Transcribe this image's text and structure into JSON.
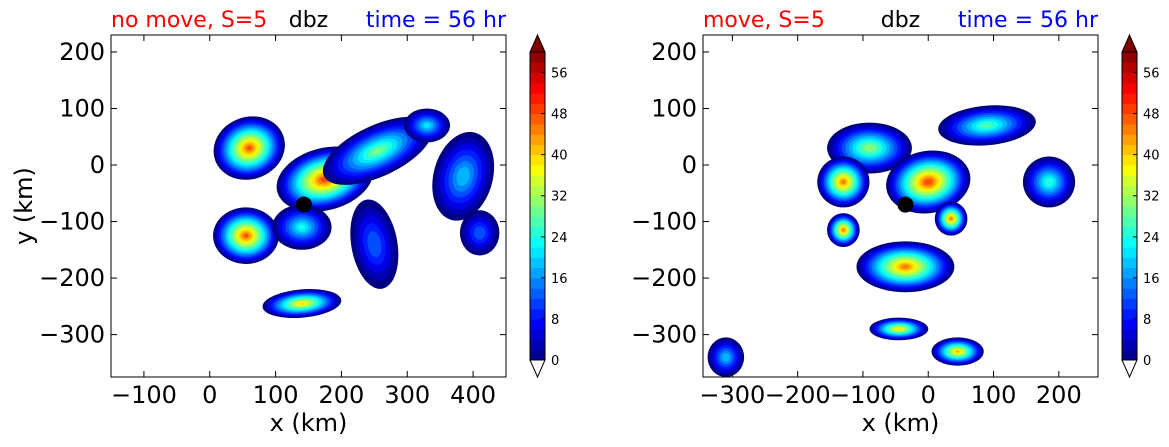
{
  "chart_data": [
    {
      "type": "heatmap",
      "title_left": "no move, S=5",
      "title_center": "dbz",
      "title_right": "time = 56 hr",
      "title_left_color": "#ff0000",
      "title_center_color": "#000000",
      "title_right_color": "#0000ff",
      "xlabel": "x (km)",
      "ylabel": "y (km)",
      "xlim": [
        -150,
        450
      ],
      "ylim": [
        -375,
        230
      ],
      "xticks": [
        "−100",
        "0",
        "100",
        "200",
        "300",
        "400"
      ],
      "xtick_values": [
        -100,
        0,
        100,
        200,
        300,
        400
      ],
      "yticks": [
        "200",
        "100",
        "0",
        "−100",
        "−200",
        "−300"
      ],
      "ytick_values": [
        200,
        100,
        0,
        -100,
        -200,
        -300
      ],
      "center_marker": [
        143,
        -70
      ],
      "colorbar": {
        "label_values": [
          0,
          8,
          16,
          24,
          32,
          40,
          48,
          56
        ],
        "labels": [
          "0",
          "8",
          "16",
          "24",
          "32",
          "40",
          "48",
          "56"
        ],
        "range": [
          0,
          60
        ],
        "extend": "both"
      },
      "cells": [
        {
          "x": 60,
          "y": 30,
          "rx": 55,
          "ry": 55,
          "peak": 48,
          "rot": -20
        },
        {
          "x": 175,
          "y": -25,
          "rx": 75,
          "ry": 55,
          "peak": 50,
          "rot": -15
        },
        {
          "x": 255,
          "y": 25,
          "rx": 90,
          "ry": 45,
          "peak": 30,
          "rot": -25
        },
        {
          "x": 330,
          "y": 70,
          "rx": 35,
          "ry": 30,
          "peak": 22,
          "rot": 0
        },
        {
          "x": 385,
          "y": -20,
          "rx": 45,
          "ry": 80,
          "peak": 20,
          "rot": 15
        },
        {
          "x": 410,
          "y": -120,
          "rx": 30,
          "ry": 40,
          "peak": 14,
          "rot": 0
        },
        {
          "x": 55,
          "y": -125,
          "rx": 50,
          "ry": 50,
          "peak": 48,
          "rot": 0
        },
        {
          "x": 250,
          "y": -140,
          "rx": 35,
          "ry": 80,
          "peak": 14,
          "rot": -10
        },
        {
          "x": 140,
          "y": -110,
          "rx": 45,
          "ry": 40,
          "peak": 24,
          "rot": 0
        },
        {
          "x": 140,
          "y": -245,
          "rx": 60,
          "ry": 25,
          "peak": 40,
          "rot": -5
        }
      ]
    },
    {
      "type": "heatmap",
      "title_left": "move, S=5",
      "title_center": "dbz",
      "title_right": "time = 56 hr",
      "title_left_color": "#ff0000",
      "title_center_color": "#000000",
      "title_right_color": "#0000ff",
      "xlabel": "x (km)",
      "ylabel": "",
      "xlim": [
        -345,
        260
      ],
      "ylim": [
        -375,
        230
      ],
      "xticks": [
        "−300",
        "−200",
        "−100",
        "0",
        "100",
        "200"
      ],
      "xtick_values": [
        -300,
        -200,
        -100,
        0,
        100,
        200
      ],
      "yticks": [
        "200",
        "100",
        "0",
        "−100",
        "−200",
        "−300"
      ],
      "ytick_values": [
        200,
        100,
        0,
        -100,
        -200,
        -300
      ],
      "center_marker": [
        -35,
        -70
      ],
      "colorbar": {
        "label_values": [
          0,
          8,
          16,
          24,
          32,
          40,
          48,
          56
        ],
        "labels": [
          "0",
          "8",
          "16",
          "24",
          "32",
          "40",
          "48",
          "56"
        ],
        "range": [
          0,
          60
        ],
        "extend": "both"
      },
      "cells": [
        {
          "x": -90,
          "y": 30,
          "rx": 65,
          "ry": 45,
          "peak": 32,
          "rot": 0
        },
        {
          "x": -130,
          "y": -30,
          "rx": 40,
          "ry": 45,
          "peak": 46,
          "rot": 0
        },
        {
          "x": 0,
          "y": -30,
          "rx": 65,
          "ry": 55,
          "peak": 50,
          "rot": -10
        },
        {
          "x": 35,
          "y": -95,
          "rx": 25,
          "ry": 30,
          "peak": 46,
          "rot": 0
        },
        {
          "x": 90,
          "y": 70,
          "rx": 75,
          "ry": 35,
          "peak": 28,
          "rot": -5
        },
        {
          "x": 185,
          "y": -30,
          "rx": 40,
          "ry": 45,
          "peak": 26,
          "rot": 0
        },
        {
          "x": -130,
          "y": -115,
          "rx": 25,
          "ry": 30,
          "peak": 46,
          "rot": 0
        },
        {
          "x": -35,
          "y": -180,
          "rx": 75,
          "ry": 45,
          "peak": 46,
          "rot": 0
        },
        {
          "x": -45,
          "y": -290,
          "rx": 45,
          "ry": 20,
          "peak": 40,
          "rot": 0
        },
        {
          "x": 45,
          "y": -330,
          "rx": 40,
          "ry": 25,
          "peak": 42,
          "rot": 0
        },
        {
          "x": -310,
          "y": -340,
          "rx": 28,
          "ry": 35,
          "peak": 20,
          "rot": 0
        }
      ]
    }
  ]
}
